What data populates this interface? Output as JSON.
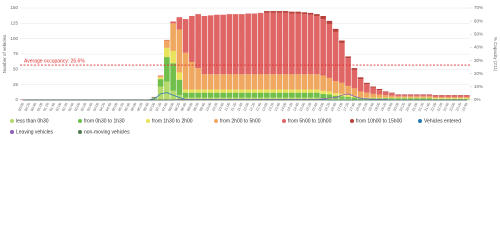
{
  "chart_data": {
    "type": "bar",
    "stacked": true,
    "grid": true,
    "y_label": "Number of vehicles",
    "y2_label": "% Capacity (211)",
    "ylim": [
      0,
      150
    ],
    "yticks": [
      0,
      25,
      50,
      75,
      100,
      125,
      150
    ],
    "y2lim": [
      0,
      70
    ],
    "y2ticks": [
      {
        "value": 0,
        "label": "0%"
      },
      {
        "value": 10,
        "label": "10%"
      },
      {
        "value": 20,
        "label": "20%"
      },
      {
        "value": 30,
        "label": "30%"
      },
      {
        "value": 40,
        "label": "40%"
      },
      {
        "value": 50,
        "label": "50%"
      },
      {
        "value": 60,
        "label": "60%"
      },
      {
        "value": 70,
        "label": "70%"
      }
    ],
    "average": {
      "value": 26.6,
      "label": "Average occupancy: 26.6%",
      "axis": "y2",
      "color": "#e03030"
    },
    "categories": [
      "00:00",
      "00:20",
      "00:40",
      "01:00",
      "01:20",
      "01:40",
      "02:00",
      "02:20",
      "02:40",
      "03:00",
      "03:20",
      "03:40",
      "04:00",
      "04:20",
      "04:40",
      "05:00",
      "05:20",
      "05:40",
      "06:00",
      "06:20",
      "06:40",
      "07:00",
      "07:20",
      "07:40",
      "08:00",
      "08:20",
      "08:40",
      "09:00",
      "09:20",
      "09:40",
      "10:00",
      "10:20",
      "10:40",
      "11:00",
      "11:20",
      "11:40",
      "12:00",
      "12:20",
      "12:40",
      "13:00",
      "13:20",
      "13:40",
      "14:00",
      "14:20",
      "14:40",
      "15:00",
      "15:20",
      "15:40",
      "16:00",
      "16:20",
      "16:40",
      "17:00",
      "17:20",
      "17:40",
      "18:00",
      "18:20",
      "18:40",
      "19:00",
      "19:20",
      "19:40",
      "20:00",
      "20:20",
      "20:40",
      "21:00",
      "21:20",
      "21:40",
      "22:00",
      "22:20",
      "22:40",
      "23:00",
      "23:20",
      "23:40"
    ],
    "series": [
      {
        "name": "less than 0h30",
        "color": "#b5d96a",
        "values": [
          0,
          0,
          0,
          0,
          0,
          0,
          0,
          0,
          0,
          0,
          0,
          0,
          0,
          0,
          0,
          0,
          0,
          0,
          0,
          0,
          0,
          3,
          22,
          30,
          15,
          8,
          4,
          4,
          4,
          4,
          4,
          4,
          4,
          4,
          4,
          4,
          4,
          4,
          4,
          4,
          4,
          4,
          4,
          4,
          4,
          4,
          4,
          4,
          3,
          3,
          2,
          2,
          2,
          1,
          1,
          1,
          1,
          1,
          1,
          1,
          1,
          1,
          1,
          1,
          1,
          1,
          1,
          1,
          1,
          1,
          1,
          1
        ]
      },
      {
        "name": "from 0h30 to 1h30",
        "color": "#6fbf4a",
        "values": [
          0,
          0,
          0,
          0,
          0,
          0,
          0,
          0,
          0,
          0,
          0,
          0,
          0,
          0,
          0,
          0,
          0,
          0,
          0,
          0,
          0,
          1,
          12,
          40,
          45,
          25,
          8,
          8,
          8,
          8,
          8,
          8,
          8,
          8,
          8,
          8,
          8,
          8,
          8,
          8,
          8,
          8,
          8,
          8,
          8,
          8,
          8,
          8,
          7,
          6,
          5,
          4,
          3,
          3,
          2,
          2,
          2,
          2,
          2,
          2,
          2,
          2,
          2,
          2,
          2,
          2,
          1,
          1,
          1,
          1,
          1,
          1
        ]
      },
      {
        "name": "from 1h30 to 2h00",
        "color": "#e8e35a",
        "values": [
          0,
          0,
          0,
          0,
          0,
          0,
          0,
          0,
          0,
          0,
          0,
          0,
          0,
          0,
          0,
          0,
          0,
          0,
          0,
          0,
          0,
          0,
          3,
          15,
          20,
          12,
          5,
          5,
          5,
          5,
          5,
          5,
          5,
          5,
          5,
          5,
          5,
          5,
          5,
          5,
          5,
          5,
          5,
          5,
          5,
          5,
          5,
          5,
          5,
          5,
          4,
          4,
          3,
          3,
          1,
          1,
          1,
          1,
          1,
          1,
          1,
          1,
          1,
          1,
          1,
          1,
          1,
          1,
          1,
          1,
          1,
          1
        ]
      },
      {
        "name": "from 2h00 to 5h00",
        "color": "#f0a860",
        "values": [
          0,
          0,
          0,
          0,
          0,
          0,
          0,
          0,
          0,
          0,
          0,
          0,
          0,
          0,
          0,
          0,
          0,
          0,
          0,
          0,
          0,
          0,
          2,
          12,
          45,
          70,
          60,
          45,
          35,
          25,
          25,
          25,
          25,
          25,
          25,
          25,
          25,
          25,
          25,
          25,
          25,
          25,
          25,
          25,
          25,
          25,
          25,
          25,
          25,
          22,
          20,
          18,
          15,
          12,
          10,
          8,
          6,
          5,
          4,
          3,
          2,
          2,
          2,
          2,
          2,
          2,
          2,
          2,
          2,
          2,
          2,
          2
        ]
      },
      {
        "name": "from 5h00 to 10h00",
        "color": "#e06666",
        "values": [
          1,
          1,
          1,
          1,
          1,
          1,
          1,
          1,
          1,
          1,
          1,
          1,
          1,
          1,
          1,
          1,
          1,
          1,
          1,
          1,
          1,
          1,
          1,
          1,
          3,
          20,
          55,
          75,
          88,
          95,
          96,
          97,
          97,
          98,
          98,
          98,
          99,
          99,
          100,
          100,
          100,
          100,
          100,
          99,
          99,
          98,
          97,
          95,
          92,
          88,
          80,
          65,
          45,
          30,
          20,
          14,
          10,
          7,
          5,
          4,
          2,
          2,
          2,
          2,
          2,
          2,
          2,
          2,
          2,
          2,
          2,
          2
        ]
      },
      {
        "name": "from 10h00 to 15h00",
        "color": "#b8403a",
        "values": [
          0,
          0,
          0,
          0,
          0,
          0,
          0,
          0,
          0,
          0,
          0,
          0,
          0,
          0,
          0,
          0,
          0,
          0,
          0,
          0,
          0,
          0,
          0,
          0,
          0,
          0,
          0,
          0,
          0,
          0,
          0,
          0,
          0,
          0,
          0,
          0,
          0,
          0,
          0,
          3,
          3,
          3,
          3,
          3,
          3,
          3,
          3,
          3,
          5,
          5,
          5,
          4,
          3,
          3,
          3,
          2,
          2,
          2,
          1,
          1,
          1,
          1,
          1,
          1,
          1,
          1,
          1,
          1,
          1,
          1,
          1,
          1
        ]
      },
      {
        "name": "Vehicles entered",
        "color": "#2a7ab8",
        "mode": "line",
        "values": [
          0,
          0,
          0,
          0,
          0,
          0,
          0,
          0,
          0,
          0,
          0,
          0,
          0,
          0,
          0,
          0,
          0,
          0,
          0,
          0,
          0,
          2,
          10,
          12,
          8,
          4,
          1,
          1,
          1,
          1,
          1,
          1,
          1,
          1,
          1,
          1,
          1,
          1,
          1,
          1,
          1,
          1,
          1,
          1,
          1,
          1,
          1,
          1,
          1,
          0,
          0,
          0,
          0,
          0,
          0,
          0,
          0,
          0,
          0,
          0,
          0,
          0,
          0,
          0,
          0,
          0,
          0,
          0,
          0,
          0,
          0,
          0
        ]
      },
      {
        "name": "Leaving vehicles",
        "color": "#8e5fb8",
        "mode": "line",
        "values": [
          0,
          0,
          0,
          0,
          0,
          0,
          0,
          0,
          0,
          0,
          0,
          0,
          0,
          0,
          0,
          0,
          0,
          0,
          0,
          0,
          0,
          0,
          0,
          0,
          0,
          1,
          1,
          1,
          1,
          1,
          1,
          1,
          1,
          1,
          1,
          1,
          1,
          1,
          1,
          1,
          1,
          1,
          1,
          1,
          1,
          1,
          1,
          1,
          2,
          3,
          4,
          8,
          10,
          6,
          3,
          2,
          1,
          1,
          1,
          0,
          0,
          0,
          0,
          0,
          0,
          0,
          0,
          0,
          0,
          0,
          0,
          0
        ]
      },
      {
        "name": "non-moving vehicles",
        "color": "#4f7a52",
        "mode": "line",
        "values": [
          0,
          0,
          0,
          0,
          0,
          0,
          0,
          0,
          0,
          0,
          0,
          0,
          0,
          0,
          0,
          0,
          0,
          0,
          0,
          0,
          0,
          0,
          0,
          0,
          0,
          0,
          0,
          0,
          0,
          0,
          0,
          0,
          0,
          0,
          0,
          0,
          0,
          0,
          0,
          0,
          0,
          0,
          0,
          0,
          0,
          0,
          0,
          0,
          0,
          0,
          0,
          0,
          0,
          0,
          0,
          0,
          0,
          0,
          0,
          0,
          0,
          0,
          0,
          0,
          0,
          0,
          0,
          0,
          0,
          0,
          0,
          0
        ]
      }
    ]
  }
}
